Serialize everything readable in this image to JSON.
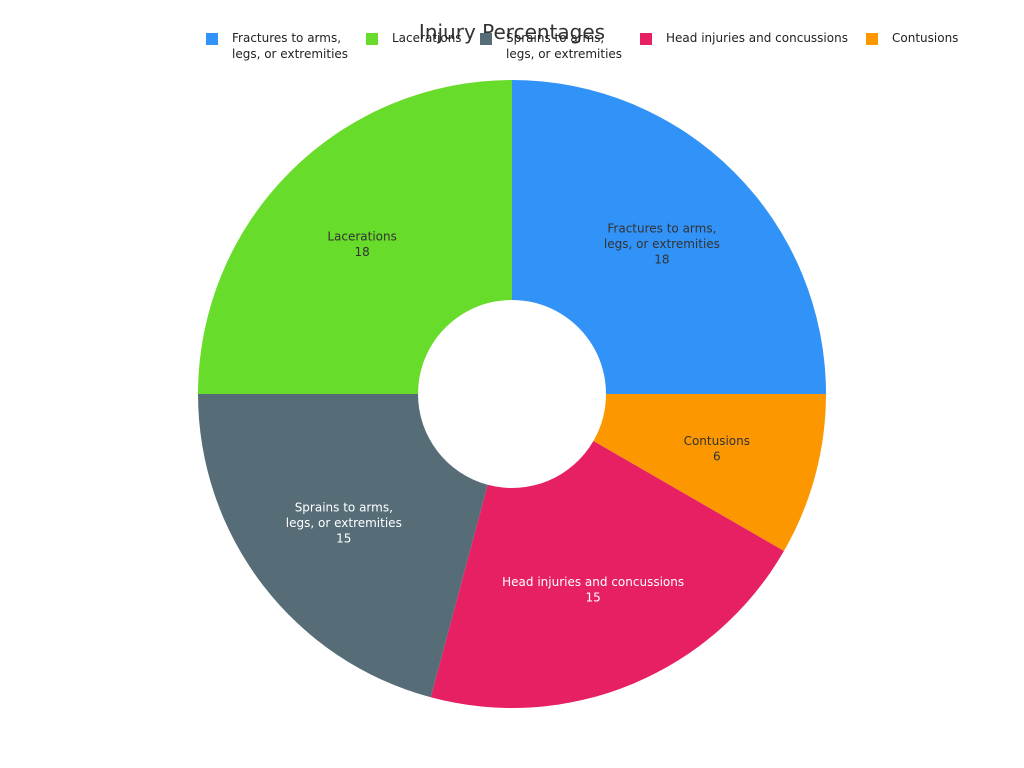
{
  "chart_data": {
    "type": "pie",
    "title": "Injury Percentages",
    "donut": true,
    "legend_position": "top",
    "slices": [
      {
        "label": "Fractures to arms,\nlegs, or extremities",
        "value": 18,
        "color": "#3192f7",
        "text_color": "#333333"
      },
      {
        "label": "Contusions",
        "value": 6,
        "color": "#fc9700",
        "text_color": "#333333"
      },
      {
        "label": "Head injuries and concussions",
        "value": 15,
        "color": "#e71f63",
        "text_color": "#ffffff"
      },
      {
        "label": "Sprains to arms,\nlegs, or extremities",
        "value": 15,
        "color": "#566d78",
        "text_color": "#ffffff"
      },
      {
        "label": "Lacerations",
        "value": 18,
        "color": "#68dc2a",
        "text_color": "#333333"
      }
    ],
    "legend": [
      {
        "label": "Fractures to arms,\nlegs, or extremities",
        "color": "#3192f7"
      },
      {
        "label": "Lacerations",
        "color": "#68dc2a"
      },
      {
        "label": "Sprains to arms,\nlegs, or extremities",
        "color": "#566d78"
      },
      {
        "label": "Head injuries and concussions",
        "color": "#e71f63"
      },
      {
        "label": "Contusions",
        "color": "#fc9700"
      }
    ]
  }
}
